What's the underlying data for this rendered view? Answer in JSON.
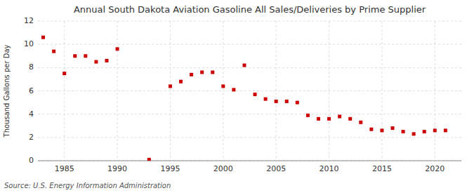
{
  "chart_data": {
    "type": "scatter",
    "title": "Annual South Dakota Aviation Gasoline All Sales/Deliveries by Prime Supplier",
    "y_label": "Thousand Gallons per Day",
    "source": "Source: U.S. Energy Information Administration",
    "x": [
      1983,
      1984,
      1985,
      1986,
      1987,
      1988,
      1989,
      1990,
      1993,
      1995,
      1996,
      1997,
      1998,
      1999,
      2000,
      2001,
      2002,
      2003,
      2004,
      2005,
      2006,
      2007,
      2008,
      2009,
      2010,
      2011,
      2012,
      2013,
      2014,
      2015,
      2016,
      2017,
      2018,
      2019,
      2020,
      2021
    ],
    "values": [
      10.6,
      9.4,
      7.5,
      9.0,
      9.0,
      8.5,
      8.6,
      9.6,
      0.1,
      6.4,
      6.8,
      7.4,
      7.6,
      7.6,
      6.4,
      6.1,
      8.2,
      5.7,
      5.3,
      5.1,
      5.1,
      5.0,
      3.9,
      3.6,
      3.6,
      3.8,
      3.6,
      3.3,
      2.7,
      2.6,
      2.8,
      2.5,
      2.3,
      2.5,
      2.6,
      2.6
    ],
    "color": "#cc0000",
    "marker": "square",
    "xlim": [
      1982.5,
      2022.5
    ],
    "ylim": [
      0,
      12
    ],
    "xticks": [
      1985,
      1990,
      1995,
      2000,
      2005,
      2010,
      2015,
      2020
    ],
    "yticks": [
      0,
      2,
      4,
      6,
      8,
      10,
      12
    ],
    "grid": true
  }
}
